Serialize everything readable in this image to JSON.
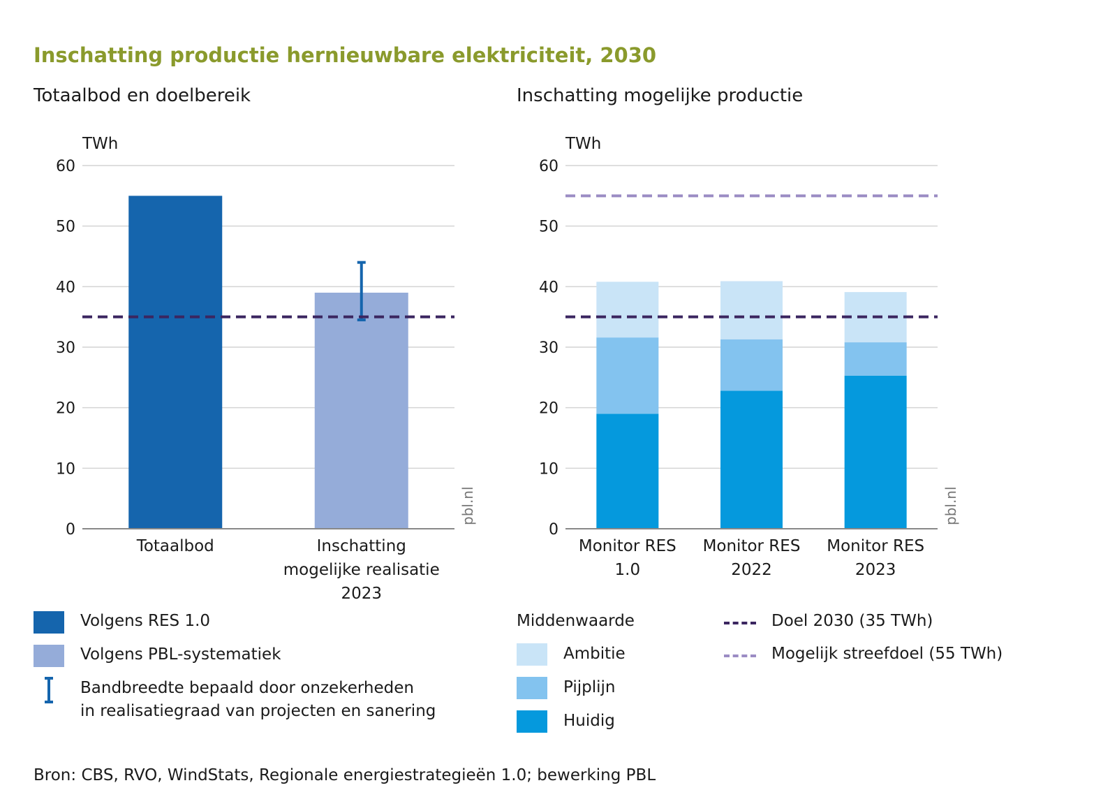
{
  "title": "Inschatting productie hernieuwbare elektriciteit, 2030",
  "colors": {
    "title": "#8a9a2c",
    "res": "#1565ad",
    "pbl": "#95acd9",
    "errorbar": "#1565ad",
    "huidig": "#0599dd",
    "pijplijn": "#83c3ef",
    "ambitie": "#c9e4f7",
    "doel": "#3b2660",
    "streefdoel": "#9b8cc4",
    "grid": "#d4d4d4",
    "axis": "#888888"
  },
  "chart_data": [
    {
      "type": "bar",
      "subtitle": "Totaalbod en doelbereik",
      "ylabel": "TWh",
      "ylim": [
        0,
        60
      ],
      "yticks": [
        0,
        10,
        20,
        30,
        40,
        50,
        60
      ],
      "categories": [
        [
          "Totaalbod"
        ],
        [
          "Inschatting",
          "mogelijke realisatie",
          "2023"
        ]
      ],
      "bars": [
        {
          "value": 55,
          "series": "Volgens RES 1.0",
          "color": "#1565ad"
        },
        {
          "value": 39,
          "series": "Volgens PBL-systematiek",
          "color": "#95acd9",
          "error_low": 34.5,
          "error_high": 44
        }
      ],
      "reference_lines": [
        {
          "value": 35,
          "name": "Doel 2030 (35 TWh)",
          "color": "#3b2660"
        }
      ],
      "watermark": "pbl.nl",
      "legend": [
        {
          "label": "Volgens RES 1.0",
          "kind": "swatch",
          "color": "#1565ad"
        },
        {
          "label": "Volgens PBL-systematiek",
          "kind": "swatch",
          "color": "#95acd9"
        },
        {
          "label_lines": [
            "Bandbreedte bepaald door onzekerheden",
            "in realisatiegraad van projecten en sanering"
          ],
          "kind": "errorbar",
          "color": "#1565ad"
        }
      ]
    },
    {
      "type": "bar",
      "stacked": true,
      "subtitle": "Inschatting mogelijke productie",
      "ylabel": "TWh",
      "ylim": [
        0,
        60
      ],
      "yticks": [
        0,
        10,
        20,
        30,
        40,
        50,
        60
      ],
      "categories": [
        [
          "Monitor RES",
          "1.0"
        ],
        [
          "Monitor RES",
          "2022"
        ],
        [
          "Monitor RES",
          "2023"
        ]
      ],
      "series": [
        {
          "name": "Huidig",
          "color": "#0599dd",
          "values": [
            19,
            22.8,
            25.3
          ]
        },
        {
          "name": "Pijplijn",
          "color": "#83c3ef",
          "values": [
            12.6,
            8.5,
            5.5
          ]
        },
        {
          "name": "Ambitie",
          "color": "#c9e4f7",
          "values": [
            9.2,
            9.6,
            8.3
          ]
        }
      ],
      "reference_lines": [
        {
          "value": 35,
          "name": "Doel 2030 (35 TWh)",
          "color": "#3b2660"
        },
        {
          "value": 55,
          "name": "Mogelijk streefdoel (55 TWh)",
          "color": "#9b8cc4"
        }
      ],
      "watermark": "pbl.nl",
      "legend_title": "Middenwaarde",
      "legend": [
        {
          "label": "Ambitie",
          "color": "#c9e4f7"
        },
        {
          "label": "Pijplijn",
          "color": "#83c3ef"
        },
        {
          "label": "Huidig",
          "color": "#0599dd"
        }
      ],
      "line_legend": [
        {
          "label": "Doel 2030 (35 TWh)",
          "color": "#3b2660"
        },
        {
          "label": "Mogelijk streefdoel (55 TWh)",
          "color": "#9b8cc4"
        }
      ]
    }
  ],
  "source": "Bron: CBS, RVO, WindStats, Regionale energiestrategieën 1.0; bewerking PBL"
}
